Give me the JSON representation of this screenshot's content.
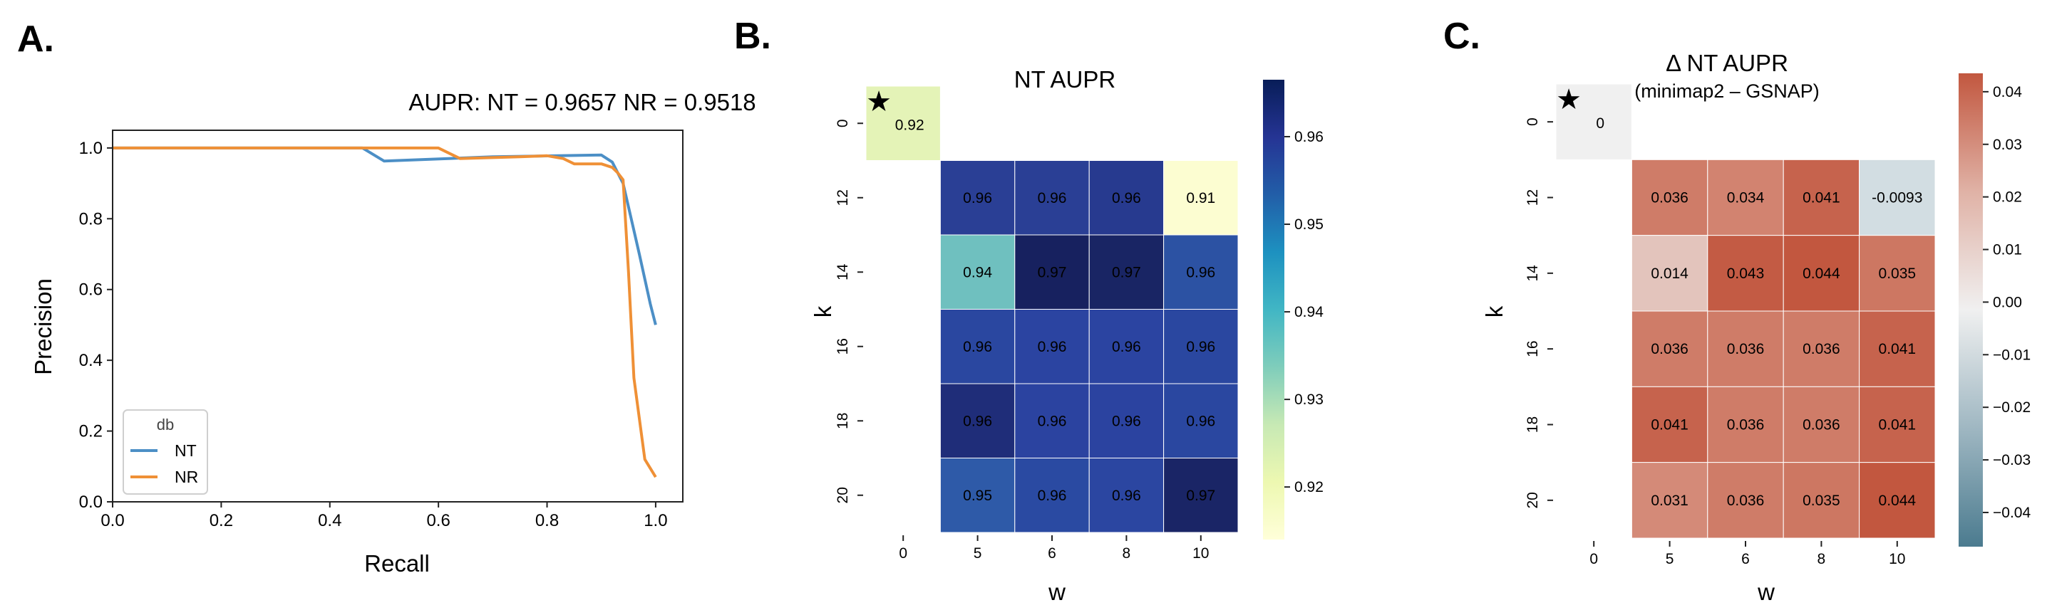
{
  "panels": {
    "a": "A.",
    "b": "B.",
    "c": "C."
  },
  "chart_data": [
    {
      "type": "line",
      "title": "AUPR: NT = 0.9657 NR = 0.9518",
      "xlabel": "Recall",
      "ylabel": "Precision",
      "xlim": [
        0.0,
        1.05
      ],
      "ylim": [
        0.0,
        1.05
      ],
      "xticks": [
        "0.0",
        "0.2",
        "0.4",
        "0.6",
        "0.8",
        "1.0"
      ],
      "yticks": [
        "0.0",
        "0.2",
        "0.4",
        "0.6",
        "0.8",
        "1.0"
      ],
      "legend": {
        "title": "db",
        "position": "lower-left"
      },
      "grid": false,
      "series": [
        {
          "name": "NT",
          "color": "#4c8fc6",
          "x": [
            0.0,
            0.46,
            0.5,
            0.7,
            0.82,
            0.9,
            0.92,
            0.94,
            0.97,
            0.99,
            1.0
          ],
          "y": [
            1.0,
            1.0,
            0.963,
            0.975,
            0.978,
            0.98,
            0.96,
            0.9,
            0.7,
            0.56,
            0.5
          ]
        },
        {
          "name": "NR",
          "color": "#ef9036",
          "x": [
            0.0,
            0.55,
            0.6,
            0.64,
            0.75,
            0.8,
            0.83,
            0.85,
            0.9,
            0.92,
            0.93,
            0.94,
            0.95,
            0.96,
            0.98,
            1.0
          ],
          "y": [
            1.0,
            1.0,
            1.0,
            0.97,
            0.975,
            0.978,
            0.97,
            0.955,
            0.955,
            0.945,
            0.93,
            0.91,
            0.65,
            0.35,
            0.12,
            0.07
          ]
        }
      ]
    },
    {
      "type": "heatmap",
      "title": "NT AUPR",
      "xlabel": "w",
      "ylabel": "k",
      "x_categories": [
        "0",
        "5",
        "6",
        "8",
        "10"
      ],
      "y_categories": [
        "0",
        "12",
        "14",
        "16",
        "18",
        "20"
      ],
      "values": [
        [
          0.92,
          null,
          null,
          null,
          null
        ],
        [
          null,
          0.96,
          0.96,
          0.96,
          0.91
        ],
        [
          null,
          0.94,
          0.97,
          0.97,
          0.96
        ],
        [
          null,
          0.96,
          0.96,
          0.96,
          0.96
        ],
        [
          null,
          0.96,
          0.96,
          0.96,
          0.96
        ],
        [
          null,
          0.95,
          0.96,
          0.96,
          0.97
        ]
      ],
      "colors": [
        [
          "#e4f3b7",
          null,
          null,
          null,
          null
        ],
        [
          null,
          "#2a3f95",
          "#2a3f95",
          "#273a8f",
          "#fcfdd1"
        ],
        [
          null,
          "#6fc0bf",
          "#17215f",
          "#192564",
          "#2c52a3"
        ],
        [
          null,
          "#2a47a0",
          "#2b44a1",
          "#2b44a1",
          "#2a47a0"
        ],
        [
          null,
          "#1f2d79",
          "#2b43a0",
          "#2b43a0",
          "#2a47a0"
        ],
        [
          null,
          "#2e5aa8",
          "#2a4aa2",
          "#2b46a1",
          "#1a2566"
        ]
      ],
      "text_dark": [
        [
          true,
          null,
          null,
          null,
          null
        ],
        [
          null,
          false,
          false,
          false,
          true
        ],
        [
          null,
          true,
          false,
          false,
          false
        ],
        [
          null,
          false,
          false,
          false,
          false
        ],
        [
          null,
          false,
          false,
          false,
          false
        ],
        [
          null,
          false,
          false,
          false,
          false
        ]
      ],
      "star_cell": [
        0,
        0
      ],
      "colorbar": {
        "min": 0.914,
        "max": 0.9665,
        "ticks": [
          "0.92",
          "0.93",
          "0.94",
          "0.95",
          "0.96"
        ],
        "tick_values": [
          0.92,
          0.93,
          0.94,
          0.95,
          0.96
        ],
        "colors": [
          "#ffffd9",
          "#edf8b1",
          "#c7e9b4",
          "#7fcdbb",
          "#41b6c4",
          "#1d91c0",
          "#225ea8",
          "#253494",
          "#081d58"
        ]
      }
    },
    {
      "type": "heatmap",
      "title": "Δ NT AUPR",
      "subtitle": "(minimap2 – GSNAP)",
      "xlabel": "w",
      "ylabel": "k",
      "x_categories": [
        "0",
        "5",
        "6",
        "8",
        "10"
      ],
      "y_categories": [
        "0",
        "12",
        "14",
        "16",
        "18",
        "20"
      ],
      "values": [
        [
          "0",
          null,
          null,
          null,
          null
        ],
        [
          null,
          "0.036",
          "0.034",
          "0.041",
          "-0.0093"
        ],
        [
          null,
          "0.014",
          "0.043",
          "0.044",
          "0.035"
        ],
        [
          null,
          "0.036",
          "0.036",
          "0.036",
          "0.041"
        ],
        [
          null,
          "0.041",
          "0.036",
          "0.036",
          "0.041"
        ],
        [
          null,
          "0.031",
          "0.036",
          "0.035",
          "0.044"
        ]
      ],
      "colors": [
        [
          "#f0f0f0",
          null,
          null,
          null,
          null
        ],
        [
          null,
          "#cf7c68",
          "#d28370",
          "#c6634d",
          "#d2dde2"
        ],
        [
          null,
          "#e3c4bc",
          "#c35b44",
          "#c2573f",
          "#cd7762"
        ],
        [
          null,
          "#cf7c68",
          "#cf7c68",
          "#cf7c68",
          "#c6634d"
        ],
        [
          null,
          "#c6634d",
          "#cf7c68",
          "#cf7c68",
          "#c6634d"
        ],
        [
          null,
          "#d48a78",
          "#cf7c68",
          "#cd7762",
          "#c2573f"
        ]
      ],
      "text_dark": [
        [
          true,
          null,
          null,
          null,
          null
        ],
        [
          null,
          false,
          false,
          false,
          true
        ],
        [
          null,
          true,
          false,
          false,
          false
        ],
        [
          null,
          false,
          false,
          false,
          false
        ],
        [
          null,
          false,
          false,
          false,
          false
        ],
        [
          null,
          false,
          false,
          false,
          false
        ]
      ],
      "star_cell": [
        0,
        0
      ],
      "colorbar": {
        "min": -0.0465,
        "max": 0.0435,
        "ticks": [
          "0.04",
          "0.03",
          "0.02",
          "0.01",
          "0.00",
          "−0.01",
          "−0.02",
          "−0.03",
          "−0.04"
        ],
        "tick_values": [
          0.04,
          0.03,
          0.02,
          0.01,
          0.0,
          -0.01,
          -0.02,
          -0.03,
          -0.04
        ],
        "colors": [
          "#4b7b8f",
          "#9fb7c2",
          "#f0f0f0",
          "#e0b2a6",
          "#c2573f"
        ]
      }
    }
  ]
}
